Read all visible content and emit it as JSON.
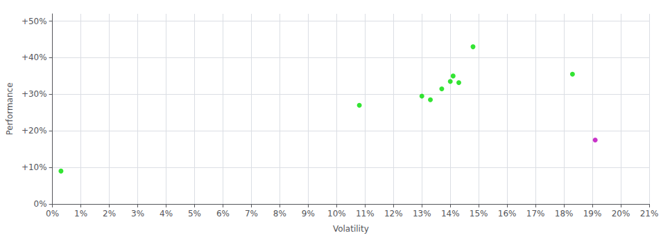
{
  "chart_data": {
    "type": "scatter",
    "xlabel": "Volatility",
    "ylabel": "Performance",
    "series": [
      {
        "color": "#00dd00",
        "x": [
          0.003,
          0.108,
          0.13,
          0.133,
          0.137,
          0.14,
          0.141,
          0.143,
          0.148,
          0.183
        ],
        "values": [
          0.09,
          0.27,
          0.295,
          0.285,
          0.315,
          0.335,
          0.35,
          0.332,
          0.43,
          0.355
        ]
      },
      {
        "color": "#bb00bb",
        "x": [
          0.191
        ],
        "values": [
          0.175
        ]
      }
    ],
    "xlim": [
      0,
      0.21
    ],
    "ylim": [
      0,
      0.52
    ],
    "xticks": [
      {
        "value": 0,
        "label": "0%"
      },
      {
        "value": 0.01,
        "label": "1%"
      },
      {
        "value": 0.02,
        "label": "2%"
      },
      {
        "value": 0.03,
        "label": "3%"
      },
      {
        "value": 0.04,
        "label": "4%"
      },
      {
        "value": 0.05,
        "label": "5%"
      },
      {
        "value": 0.06,
        "label": "6%"
      },
      {
        "value": 0.07,
        "label": "7%"
      },
      {
        "value": 0.08,
        "label": "8%"
      },
      {
        "value": 0.09,
        "label": "9%"
      },
      {
        "value": 0.1,
        "label": "10%"
      },
      {
        "value": 0.11,
        "label": "11%"
      },
      {
        "value": 0.12,
        "label": "12%"
      },
      {
        "value": 0.13,
        "label": "13%"
      },
      {
        "value": 0.14,
        "label": "14%"
      },
      {
        "value": 0.15,
        "label": "15%"
      },
      {
        "value": 0.16,
        "label": "16%"
      },
      {
        "value": 0.17,
        "label": "17%"
      },
      {
        "value": 0.18,
        "label": "18%"
      },
      {
        "value": 0.19,
        "label": "19%"
      },
      {
        "value": 0.2,
        "label": "20%"
      },
      {
        "value": 0.21,
        "label": "21%"
      }
    ],
    "yticks": [
      {
        "value": 0,
        "label": "0%"
      },
      {
        "value": 0.1,
        "label": "+10%"
      },
      {
        "value": 0.2,
        "label": "+20%"
      },
      {
        "value": 0.3,
        "label": "+30%"
      },
      {
        "value": 0.4,
        "label": "+40%"
      },
      {
        "value": 0.5,
        "label": "+50%"
      }
    ],
    "grid": true
  }
}
